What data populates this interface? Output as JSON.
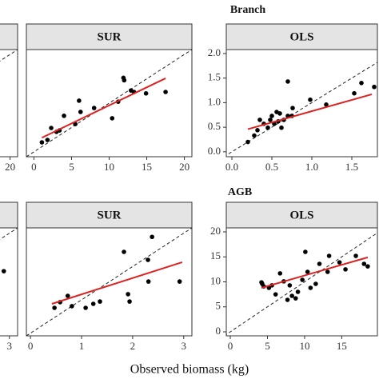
{
  "row_titles": [
    "Branch",
    "AGB"
  ],
  "x_label": "Observed biomass (kg)",
  "chart_data": [
    {
      "type": "scatter",
      "xlim": [
        -1,
        21
      ],
      "ylim": [
        -1,
        21
      ],
      "xticks": [
        20
      ],
      "series": []
    },
    {
      "type": "scatter",
      "title": "SUR",
      "xlim": [
        -1,
        21
      ],
      "ylim": [
        -1,
        21
      ],
      "xticks": [
        0,
        5,
        10,
        15,
        20
      ],
      "series": [
        {
          "color": "#000000",
          "x": [
            1.06,
            1.8,
            2.3,
            3.0,
            3.4,
            4.0,
            5.5,
            6.0,
            6.2,
            8.0,
            10.4,
            11.2,
            11.9,
            12.0,
            12.9,
            13.3,
            14.9,
            17.5
          ],
          "values": [
            1.95,
            2.44,
            4.9,
            4.1,
            4.4,
            7.4,
            5.7,
            10.5,
            8.2,
            9.0,
            6.9,
            10.3,
            15.2,
            14.7,
            12.6,
            12.3,
            12.0,
            12.3
          ]
        },
        {
          "color": "#dd2222",
          "style": "line",
          "x": [
            1.06,
            17.5
          ],
          "values": [
            2.9,
            15.1
          ]
        }
      ]
    },
    {
      "type": "scatter",
      "title": "OLS",
      "xlim": [
        -0.07,
        1.82
      ],
      "ylim": [
        -0.1,
        2.08
      ],
      "xticks": [
        {
          "value": 0,
          "label": "0.0"
        },
        {
          "value": 0.5,
          "label": "0.5"
        },
        {
          "value": 1,
          "label": "1.0"
        },
        {
          "value": 1.5,
          "label": "1.5"
        }
      ],
      "yticks": [
        {
          "value": 0,
          "label": "0.0"
        },
        {
          "value": 0.5,
          "label": "0.5"
        },
        {
          "value": 1,
          "label": "1.0"
        },
        {
          "value": 1.5,
          "label": "1.5"
        },
        {
          "value": 2,
          "label": "2.0"
        }
      ],
      "series": [
        {
          "color": "#000000",
          "x": [
            0.2,
            0.28,
            0.32,
            0.35,
            0.4,
            0.45,
            0.48,
            0.5,
            0.53,
            0.56,
            0.58,
            0.6,
            0.62,
            0.65,
            0.7,
            0.75,
            0.7,
            0.76,
            0.98,
            1.18,
            1.53,
            1.62,
            1.78
          ],
          "values": [
            0.2,
            0.33,
            0.44,
            0.65,
            0.57,
            0.49,
            0.65,
            0.73,
            0.57,
            0.81,
            0.62,
            0.78,
            0.49,
            0.65,
            0.73,
            0.73,
            1.43,
            0.89,
            1.06,
            0.96,
            1.19,
            1.4,
            1.32
          ]
        },
        {
          "color": "#dd2222",
          "style": "line",
          "x": [
            0.2,
            1.75
          ],
          "values": [
            0.46,
            1.17
          ]
        }
      ]
    },
    {
      "type": "scatter",
      "xlim": [
        -0.08,
        3.16
      ],
      "ylim": [
        -0.08,
        3.16
      ],
      "xticks": [
        3
      ],
      "series": [
        {
          "color": "#000000",
          "x": [
            2.89
          ],
          "values": [
            1.86
          ]
        }
      ]
    },
    {
      "type": "scatter",
      "title": "SUR",
      "xlim": [
        -0.08,
        3.16
      ],
      "ylim": [
        -0.08,
        3.16
      ],
      "xticks": [
        0,
        1,
        2,
        3
      ],
      "series": [
        {
          "color": "#000000",
          "x": [
            0.47,
            0.58,
            0.81,
            0.73,
            1.08,
            1.23,
            1.36,
            1.83,
            1.91,
            1.94,
            2.3,
            2.38,
            2.31,
            2.92
          ],
          "values": [
            0.76,
            0.93,
            0.81,
            1.12,
            0.76,
            0.88,
            0.95,
            2.44,
            1.17,
            0.95,
            2.2,
            2.89,
            1.55,
            1.55
          ]
        },
        {
          "color": "#dd2222",
          "style": "line",
          "x": [
            0.42,
            2.97
          ],
          "values": [
            0.88,
            2.13
          ]
        }
      ]
    },
    {
      "type": "scatter",
      "title": "OLS",
      "xlim": [
        -0.54,
        19.8
      ],
      "ylim": [
        -0.8,
        20.8
      ],
      "xticks": [
        0,
        5,
        10,
        15
      ],
      "yticks": [
        0,
        5,
        10,
        15,
        20
      ],
      "series": [
        {
          "color": "#000000",
          "x": [
            4.2,
            4.3,
            4.5,
            5.2,
            5.6,
            6.1,
            6.7,
            7.2,
            7.7,
            8.0,
            8.3,
            8.8,
            9.1,
            9.7,
            10.1,
            10.4,
            10.8,
            11.5,
            12.0,
            13.1,
            13.3,
            14.7,
            15.5,
            16.9,
            18.0,
            18.5
          ],
          "values": [
            9.9,
            9.6,
            9.1,
            8.8,
            9.3,
            7.5,
            11.7,
            10.1,
            6.4,
            9.3,
            7.2,
            6.7,
            8.0,
            10.4,
            16.0,
            12.0,
            8.8,
            9.6,
            13.6,
            12.0,
            15.2,
            13.9,
            12.5,
            15.2,
            13.6,
            13.1
          ]
        },
        {
          "color": "#dd2222",
          "style": "line",
          "x": [
            4.2,
            18.5
          ],
          "values": [
            8.8,
            14.9
          ]
        }
      ]
    }
  ]
}
